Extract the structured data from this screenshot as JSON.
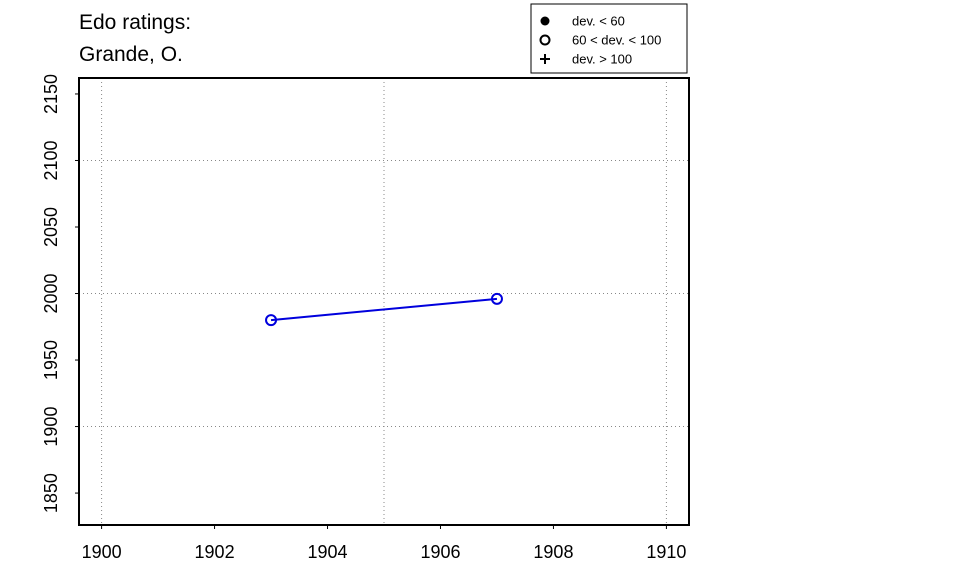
{
  "chart_data": {
    "type": "line",
    "title": [
      "Edo ratings:",
      "Grande, O."
    ],
    "x": [
      1903,
      1907
    ],
    "series": [
      {
        "color": "#0000dd",
        "marker": "open-circle",
        "values": [
          1980,
          1996
        ]
      }
    ],
    "xlim": [
      1899.6,
      1910.4
    ],
    "ylim": [
      1826,
      2162
    ],
    "xticks": [
      1900,
      1902,
      1904,
      1906,
      1908,
      1910
    ],
    "yticks": [
      1850,
      1900,
      1950,
      2000,
      2050,
      2100,
      2150
    ],
    "xgrid": [
      1900,
      1905,
      1910
    ],
    "ygrid": [
      1900,
      2000,
      2100
    ],
    "legend_position": "top-right",
    "legend": [
      {
        "label": "dev. < 60",
        "symbol": "filled-circle"
      },
      {
        "label": "60 < dev. < 100",
        "symbol": "open-circle"
      },
      {
        "label": "dev. > 100",
        "symbol": "plus"
      }
    ]
  }
}
